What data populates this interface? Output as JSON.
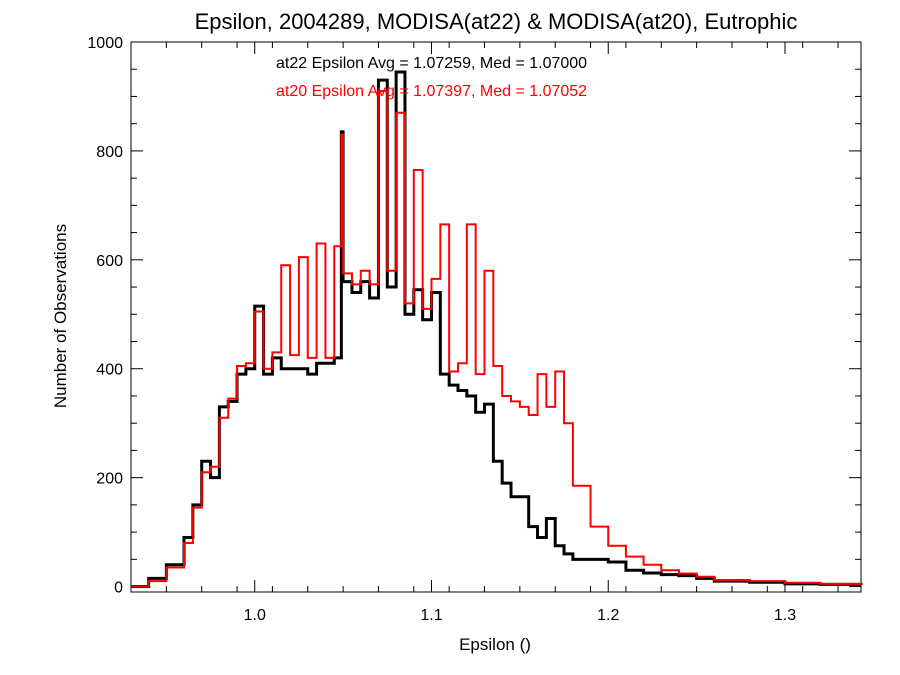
{
  "chart_data": {
    "type": "line",
    "style": "step-histogram",
    "title": "Epsilon, 2004289, MODISA(at22) & MODISA(at20), Eutrophic",
    "xlabel": "Epsilon ()",
    "ylabel": "Number of Observations",
    "xlim": [
      0.93,
      1.343
    ],
    "ylim": [
      -10,
      1000
    ],
    "x_ticks": [
      1.0,
      1.1,
      1.2,
      1.3
    ],
    "x_tick_labels": [
      "1.0",
      "1.1",
      "1.2",
      "1.3"
    ],
    "y_ticks": [
      0,
      200,
      400,
      600,
      800,
      1000
    ],
    "y_tick_labels": [
      "0",
      "200",
      "400",
      "600",
      "800",
      "1000"
    ],
    "grid": false,
    "annotations": [
      {
        "text": "at22 Epsilon Avg = 1.07259, Med = 1.07000",
        "color": "#000000"
      },
      {
        "text": "at20 Epsilon Avg = 1.07397, Med = 1.07052",
        "color": "#ff0000"
      }
    ],
    "series": [
      {
        "color": "#000000",
        "x": [
          0.93,
          0.94,
          0.95,
          0.96,
          0.965,
          0.97,
          0.975,
          0.98,
          0.985,
          0.99,
          0.995,
          1.0,
          1.005,
          1.01,
          1.015,
          1.02,
          1.025,
          1.03,
          1.035,
          1.04,
          1.045,
          1.049,
          1.05,
          1.055,
          1.06,
          1.065,
          1.07,
          1.075,
          1.08,
          1.085,
          1.09,
          1.095,
          1.1,
          1.105,
          1.11,
          1.115,
          1.12,
          1.125,
          1.13,
          1.135,
          1.14,
          1.145,
          1.15,
          1.155,
          1.16,
          1.165,
          1.17,
          1.175,
          1.18,
          1.19,
          1.2,
          1.21,
          1.22,
          1.23,
          1.24,
          1.25,
          1.26,
          1.28,
          1.3,
          1.32,
          1.343
        ],
        "y": [
          0,
          15,
          40,
          90,
          150,
          230,
          200,
          330,
          340,
          390,
          400,
          515,
          390,
          420,
          400,
          400,
          400,
          390,
          410,
          410,
          420,
          835,
          560,
          540,
          560,
          530,
          930,
          550,
          945,
          500,
          545,
          490,
          540,
          390,
          370,
          360,
          350,
          320,
          335,
          230,
          190,
          165,
          165,
          110,
          90,
          125,
          75,
          60,
          50,
          50,
          45,
          30,
          25,
          22,
          20,
          15,
          10,
          8,
          5,
          4,
          3
        ]
      },
      {
        "color": "#ff0000",
        "x": [
          0.93,
          0.94,
          0.95,
          0.96,
          0.965,
          0.97,
          0.975,
          0.98,
          0.985,
          0.99,
          0.995,
          1.0,
          1.005,
          1.01,
          1.015,
          1.02,
          1.025,
          1.03,
          1.035,
          1.04,
          1.045,
          1.049,
          1.05,
          1.055,
          1.06,
          1.065,
          1.07,
          1.075,
          1.08,
          1.085,
          1.09,
          1.095,
          1.1,
          1.105,
          1.11,
          1.115,
          1.12,
          1.125,
          1.13,
          1.135,
          1.14,
          1.145,
          1.15,
          1.155,
          1.16,
          1.165,
          1.17,
          1.175,
          1.18,
          1.19,
          1.2,
          1.21,
          1.22,
          1.23,
          1.24,
          1.25,
          1.26,
          1.28,
          1.3,
          1.32,
          1.343
        ],
        "y": [
          0,
          10,
          35,
          80,
          145,
          210,
          220,
          310,
          345,
          405,
          410,
          505,
          400,
          430,
          590,
          425,
          605,
          420,
          630,
          420,
          625,
          830,
          575,
          555,
          580,
          555,
          910,
          580,
          870,
          520,
          765,
          510,
          565,
          665,
          395,
          410,
          665,
          390,
          580,
          405,
          350,
          340,
          330,
          315,
          390,
          330,
          395,
          300,
          185,
          110,
          75,
          55,
          40,
          30,
          24,
          18,
          12,
          10,
          7,
          5,
          4
        ]
      }
    ]
  }
}
